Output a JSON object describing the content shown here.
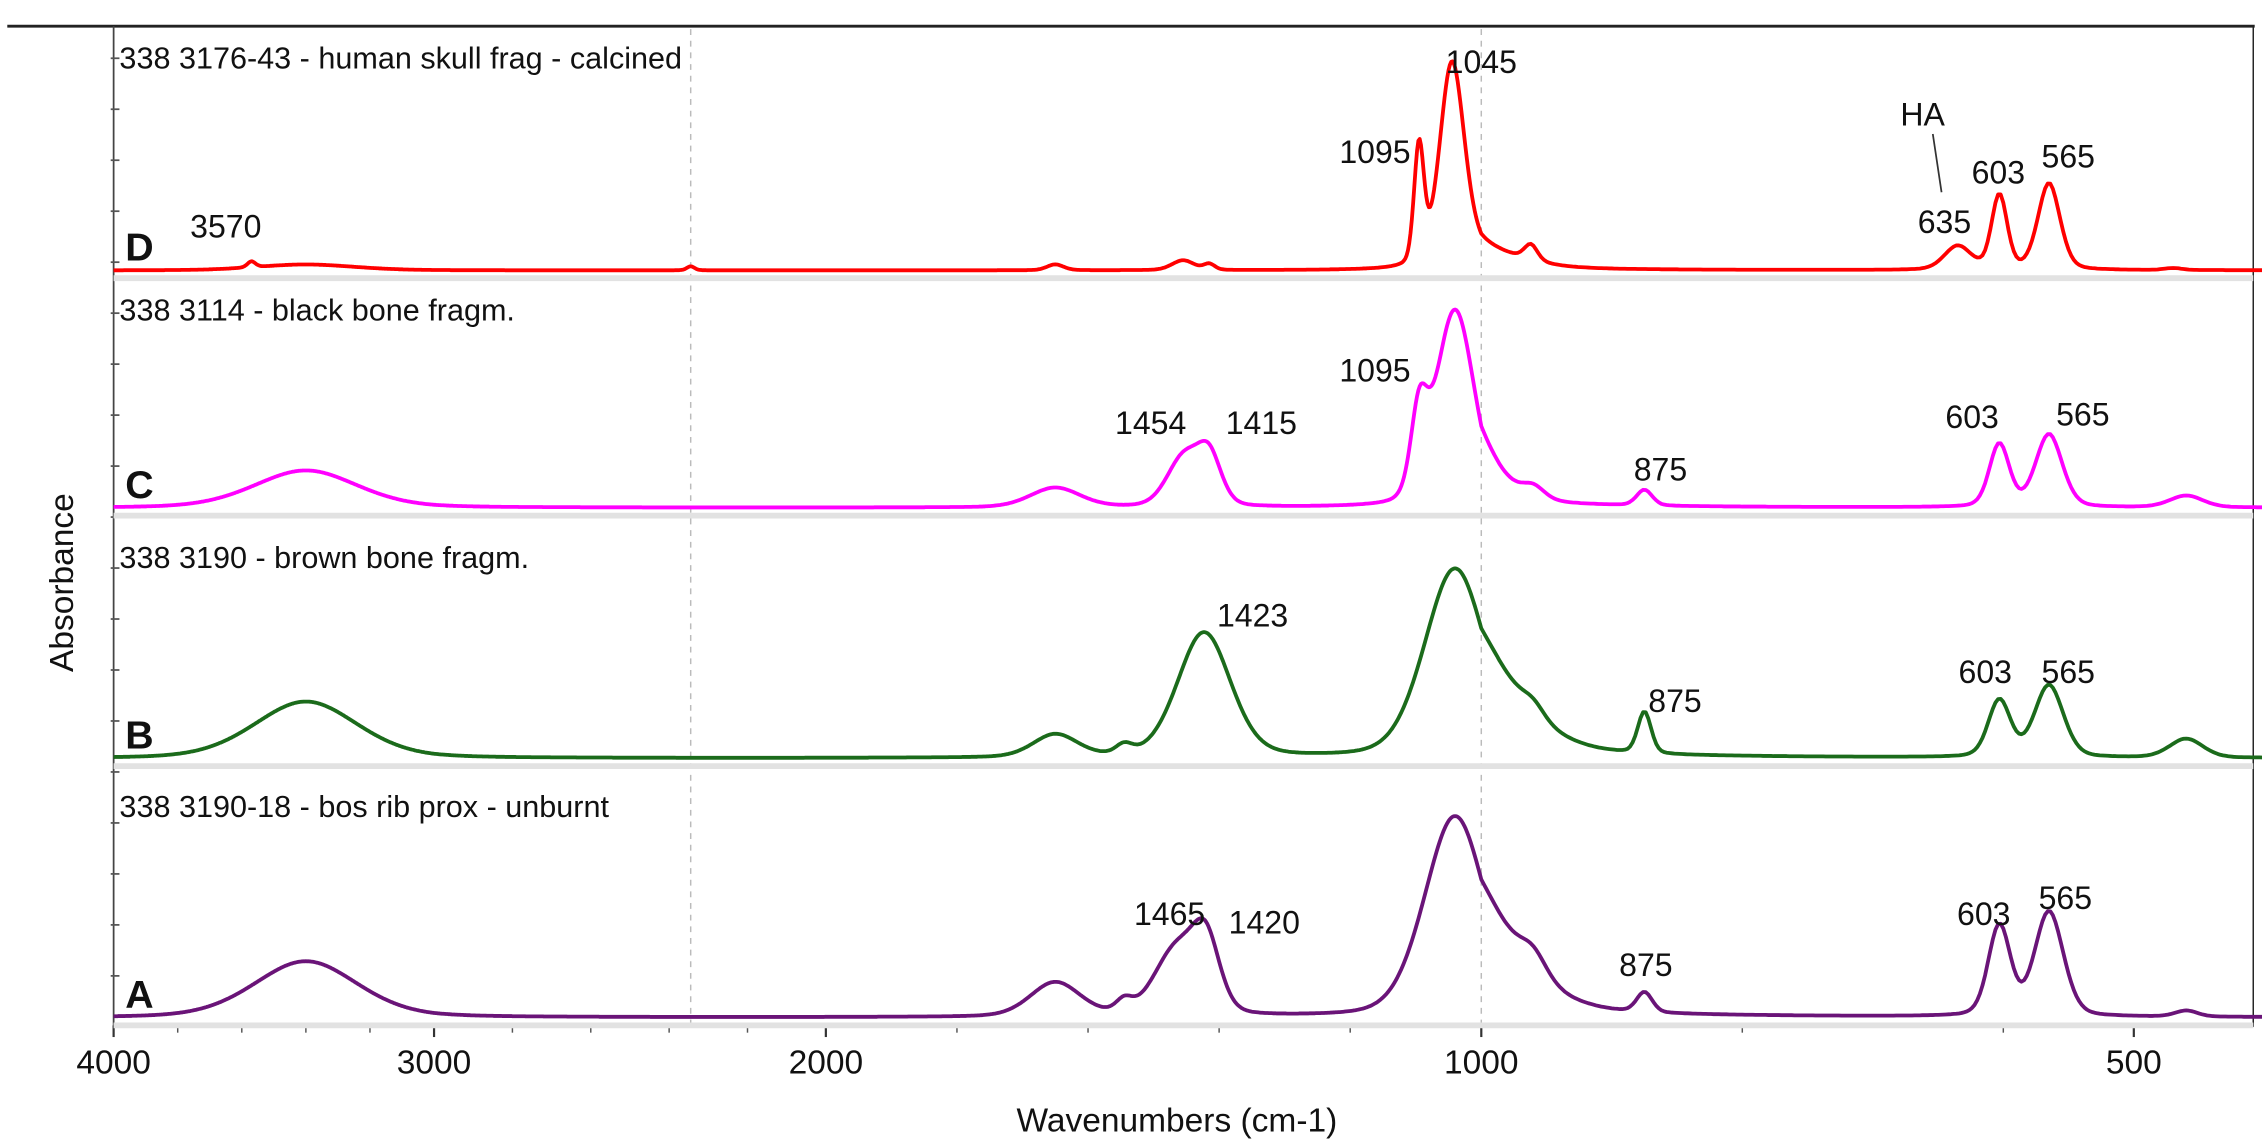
{
  "chart_data": {
    "type": "line",
    "title": "",
    "xlabel": "Wavenumbers (cm-1)",
    "ylabel": "Absorbance",
    "xlim": [
      4000,
      400
    ],
    "x_ticks": [
      "4000",
      "3000",
      "2000",
      "1000",
      "500"
    ],
    "x_tick_values": [
      4000,
      3000,
      2000,
      1000,
      500
    ],
    "grid": "vertical dashed lines near 2350 and 1000",
    "series": [
      {
        "letter": "D",
        "name": "338 3176-43 - human skull frag - calcined",
        "color": "#ff0000",
        "peaks": [
          {
            "center": 3570,
            "height": 0.03,
            "width": 15
          },
          {
            "center": 3400,
            "height": 0.03,
            "width": 180
          },
          {
            "center": 2345,
            "height": 0.02,
            "width": 12
          },
          {
            "center": 1650,
            "height": 0.03,
            "width": 15
          },
          {
            "center": 1455,
            "height": 0.05,
            "width": 20
          },
          {
            "center": 1415,
            "height": 0.03,
            "width": 10
          },
          {
            "center": 1095,
            "height": 0.6,
            "width": 9
          },
          {
            "center": 1045,
            "height": 1.0,
            "width": 22
          },
          {
            "center": 1010,
            "height": 0.1,
            "width": 40
          },
          {
            "center": 962,
            "height": 0.08,
            "width": 6
          },
          {
            "center": 635,
            "height": 0.12,
            "width": 12
          },
          {
            "center": 603,
            "height": 0.38,
            "width": 7
          },
          {
            "center": 565,
            "height": 0.44,
            "width": 10
          },
          {
            "center": 470,
            "height": 0.01,
            "width": 8
          }
        ],
        "annotations": [
          {
            "text": "3570",
            "wavenumber": 3570
          },
          {
            "text": "1095",
            "wavenumber": 1095
          },
          {
            "text": "1045",
            "wavenumber": 1045
          },
          {
            "text": "HA",
            "wavenumber": 635
          },
          {
            "text": "635",
            "wavenumber": 635
          },
          {
            "text": "603",
            "wavenumber": 603
          },
          {
            "text": "565",
            "wavenumber": 565
          }
        ]
      },
      {
        "letter": "C",
        "name": "338 3114 - black bone fragm.",
        "color": "#ff00ff",
        "peaks": [
          {
            "center": 3400,
            "height": 0.19,
            "width": 190
          },
          {
            "center": 1650,
            "height": 0.1,
            "width": 45
          },
          {
            "center": 1454,
            "height": 0.25,
            "width": 30
          },
          {
            "center": 1415,
            "height": 0.24,
            "width": 22
          },
          {
            "center": 1095,
            "height": 0.4,
            "width": 15
          },
          {
            "center": 1040,
            "height": 1.0,
            "width": 35
          },
          {
            "center": 960,
            "height": 0.06,
            "width": 10
          },
          {
            "center": 875,
            "height": 0.08,
            "width": 7
          },
          {
            "center": 603,
            "height": 0.32,
            "width": 9
          },
          {
            "center": 565,
            "height": 0.37,
            "width": 12
          },
          {
            "center": 460,
            "height": 0.06,
            "width": 15
          }
        ],
        "annotations": [
          {
            "text": "1454",
            "wavenumber": 1454
          },
          {
            "text": "1415",
            "wavenumber": 1415
          },
          {
            "text": "1095",
            "wavenumber": 1095
          },
          {
            "text": "875",
            "wavenumber": 875
          },
          {
            "text": "603",
            "wavenumber": 603
          },
          {
            "text": "565",
            "wavenumber": 565
          }
        ]
      },
      {
        "letter": "B",
        "name": "338 3190 - brown bone fragm.",
        "color": "#1b6b1b",
        "peaks": [
          {
            "center": 3400,
            "height": 0.3,
            "width": 190
          },
          {
            "center": 1650,
            "height": 0.12,
            "width": 40
          },
          {
            "center": 1545,
            "height": 0.05,
            "width": 15
          },
          {
            "center": 1423,
            "height": 0.66,
            "width": 48
          },
          {
            "center": 1040,
            "height": 1.0,
            "width": 55
          },
          {
            "center": 960,
            "height": 0.06,
            "width": 10
          },
          {
            "center": 875,
            "height": 0.22,
            "width": 6
          },
          {
            "center": 603,
            "height": 0.3,
            "width": 10
          },
          {
            "center": 565,
            "height": 0.38,
            "width": 13
          },
          {
            "center": 460,
            "height": 0.1,
            "width": 15
          }
        ],
        "annotations": [
          {
            "text": "1423",
            "wavenumber": 1423
          },
          {
            "text": "875",
            "wavenumber": 875
          },
          {
            "text": "603",
            "wavenumber": 603
          },
          {
            "text": "565",
            "wavenumber": 565
          }
        ]
      },
      {
        "letter": "A",
        "name": "338 3190-18 - bos rib prox - unburnt",
        "color": "#6a1478",
        "peaks": [
          {
            "center": 3400,
            "height": 0.28,
            "width": 190
          },
          {
            "center": 1650,
            "height": 0.17,
            "width": 45
          },
          {
            "center": 1545,
            "height": 0.06,
            "width": 15
          },
          {
            "center": 1465,
            "height": 0.33,
            "width": 40
          },
          {
            "center": 1420,
            "height": 0.33,
            "width": 25
          },
          {
            "center": 1040,
            "height": 1.0,
            "width": 55
          },
          {
            "center": 960,
            "height": 0.1,
            "width": 12
          },
          {
            "center": 875,
            "height": 0.1,
            "width": 7
          },
          {
            "center": 603,
            "height": 0.45,
            "width": 10
          },
          {
            "center": 565,
            "height": 0.52,
            "width": 13
          },
          {
            "center": 460,
            "height": 0.03,
            "width": 10
          }
        ],
        "annotations": [
          {
            "text": "1465",
            "wavenumber": 1465
          },
          {
            "text": "1420",
            "wavenumber": 1420
          },
          {
            "text": "875",
            "wavenumber": 875
          },
          {
            "text": "603",
            "wavenumber": 603
          },
          {
            "text": "565",
            "wavenumber": 565
          }
        ]
      }
    ]
  }
}
